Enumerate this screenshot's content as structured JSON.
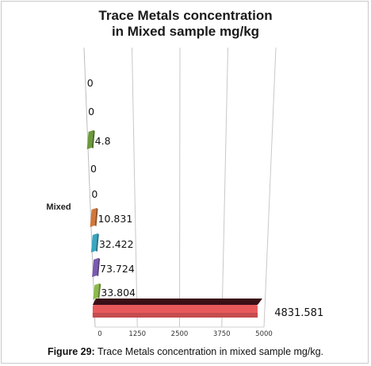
{
  "chart_data": {
    "type": "bar",
    "orientation": "horizontal",
    "style": "3d",
    "title_lines": [
      "Trace Metals concentration",
      "in Mixed sample mg/kg"
    ],
    "group_label": "Mixed",
    "ticks": [
      "0",
      "1250",
      "2500",
      "3750",
      "5000"
    ],
    "xlim": [
      0,
      5000
    ],
    "grid": true,
    "bars": [
      {
        "label": "0",
        "value": 0,
        "color": "#7f7f7f"
      },
      {
        "label": "0",
        "value": 0,
        "color": "#9e9e9e"
      },
      {
        "label": "4.8",
        "value": 4.8,
        "color": "#6b9a3b"
      },
      {
        "label": "0",
        "value": 0,
        "color": "#9e9e9e"
      },
      {
        "label": "0",
        "value": 0,
        "color": "#9e9e9e"
      },
      {
        "label": "10.831",
        "value": 10.831,
        "color": "#d2773a"
      },
      {
        "label": "32.422",
        "value": 32.422,
        "color": "#3aa6c2"
      },
      {
        "label": "73.724",
        "value": 73.724,
        "color": "#7a5bb0"
      },
      {
        "label": "33.804",
        "value": 33.804,
        "color": "#8dbb4a"
      },
      {
        "label": "4831.581",
        "value": 4831.581,
        "color": "#e8595c"
      }
    ]
  },
  "caption": {
    "prefix": "Figure 29:",
    "text": " Trace Metals concentration in mixed sample mg/kg."
  }
}
